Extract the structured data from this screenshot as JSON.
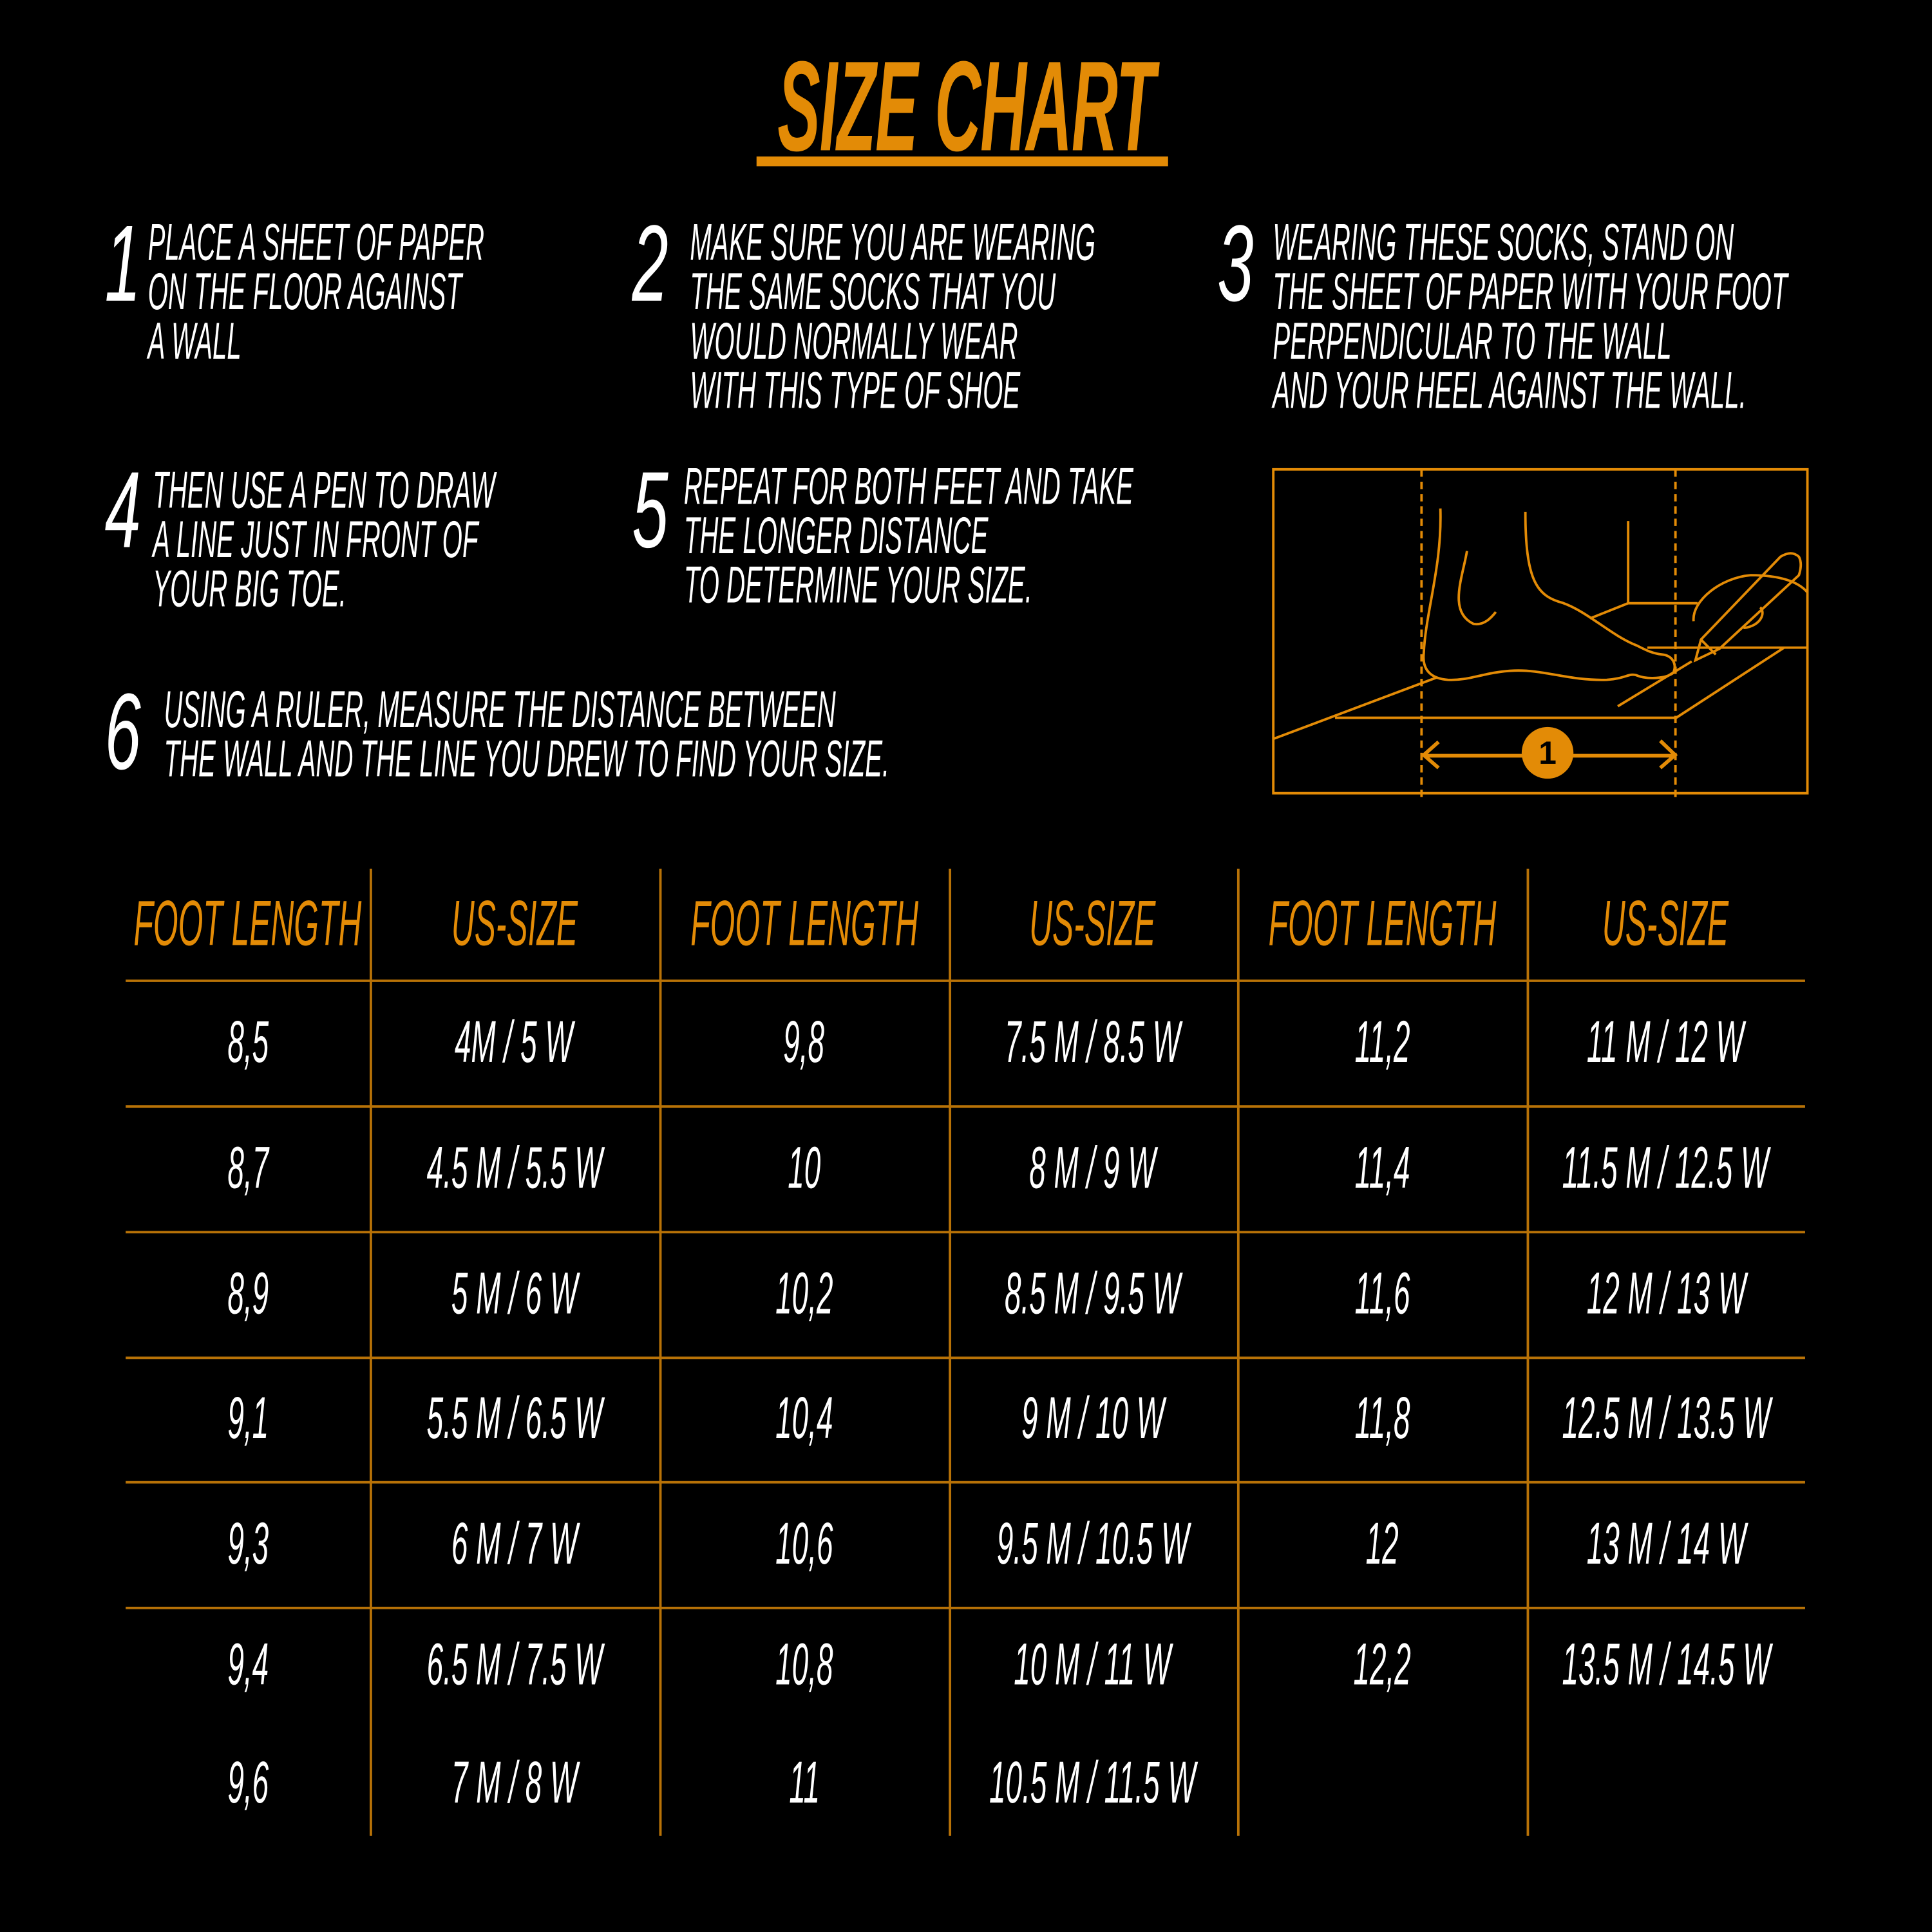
{
  "title": "SIZE CHART",
  "colors": {
    "accent": "#E38B06",
    "background": "#000000",
    "text": "#FFFFFF"
  },
  "steps": [
    {
      "number": "1",
      "lines": [
        "PLACE A SHEET OF PAPER",
        "ON THE FLOOR AGAINST",
        "A WALL"
      ]
    },
    {
      "number": "2",
      "lines": [
        "MAKE SURE YOU ARE WEARING",
        "THE SAME SOCKS THAT YOU",
        "WOULD NORMALLY WEAR",
        "WITH THIS TYPE OF SHOE"
      ]
    },
    {
      "number": "3",
      "lines": [
        "WEARING THESE SOCKS, STAND ON",
        "THE SHEET OF PAPER WITH YOUR FOOT",
        "PERPENDICULAR TO THE WALL",
        "AND YOUR HEEL AGAINST THE WALL."
      ]
    },
    {
      "number": "4",
      "lines": [
        "THEN USE A PEN TO DRAW",
        "A LINE JUST IN FRONT OF",
        "YOUR BIG TOE."
      ]
    },
    {
      "number": "5",
      "lines": [
        "REPEAT FOR BOTH FEET AND TAKE",
        "THE LONGER DISTANCE",
        "TO DETERMINE YOUR SIZE."
      ]
    },
    {
      "number": "6",
      "lines": [
        "USING A RULER, MEASURE THE DISTANCE BETWEEN",
        "THE WALL AND THE LINE YOU DREW TO FIND YOUR SIZE."
      ]
    }
  ],
  "illustration": {
    "icon": "foot-measurement-illustration",
    "badge": "1"
  },
  "table": {
    "headers": [
      "FOOT LENGTH",
      "US-SIZE",
      "FOOT LENGTH",
      "US-SIZE",
      "FOOT LENGTH",
      "US-SIZE"
    ],
    "rows": [
      [
        "8,5",
        "4M / 5 W",
        "9,8",
        "7.5 M / 8.5 W",
        "11,2",
        "11 M / 12 W"
      ],
      [
        "8,7",
        "4.5 M / 5.5 W",
        "10",
        "8 M / 9 W",
        "11,4",
        "11.5 M / 12.5 W"
      ],
      [
        "8,9",
        "5 M / 6 W",
        "10,2",
        "8.5 M / 9.5 W",
        "11,6",
        "12 M / 13 W"
      ],
      [
        "9,1",
        "5.5 M / 6.5 W",
        "10,4",
        "9 M / 10 W",
        "11,8",
        "12.5 M / 13.5 W"
      ],
      [
        "9,3",
        "6 M / 7 W",
        "10,6",
        "9.5 M / 10.5 W",
        "12",
        "13 M / 14 W"
      ],
      [
        "9,4",
        "6.5 M / 7.5 W",
        "10,8",
        "10 M / 11 W",
        "12,2",
        "13.5 M / 14.5 W"
      ],
      [
        "9,6",
        "7 M / 8 W",
        "11",
        "10.5 M / 11.5 W",
        "",
        ""
      ]
    ]
  }
}
